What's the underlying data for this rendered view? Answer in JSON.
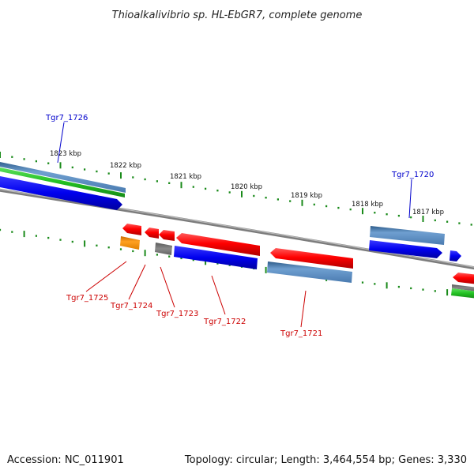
{
  "title": "Thioalkalivibrio sp. HL-EbGR7, complete genome",
  "footer": {
    "accession": "Accession: NC_011901",
    "summary": "Topology: circular; Length: 3,464,554 bp; Genes: 3,330"
  },
  "colors": {
    "forward_label": "#0000cc",
    "reverse_label": "#cc0000",
    "tick": "#1a8a1a",
    "backbone": "#808080"
  },
  "scale_labels": [
    "1823 kbp",
    "1822 kbp",
    "1821 kbp",
    "1820 kbp",
    "1819 kbp",
    "1818 kbp",
    "1817 kbp"
  ],
  "gene_labels": {
    "forward": [
      "Tgr7_1726",
      "Tgr7_1720"
    ],
    "reverse": [
      "Tgr7_1725",
      "Tgr7_1724",
      "Tgr7_1723",
      "Tgr7_1722",
      "Tgr7_1721"
    ]
  }
}
